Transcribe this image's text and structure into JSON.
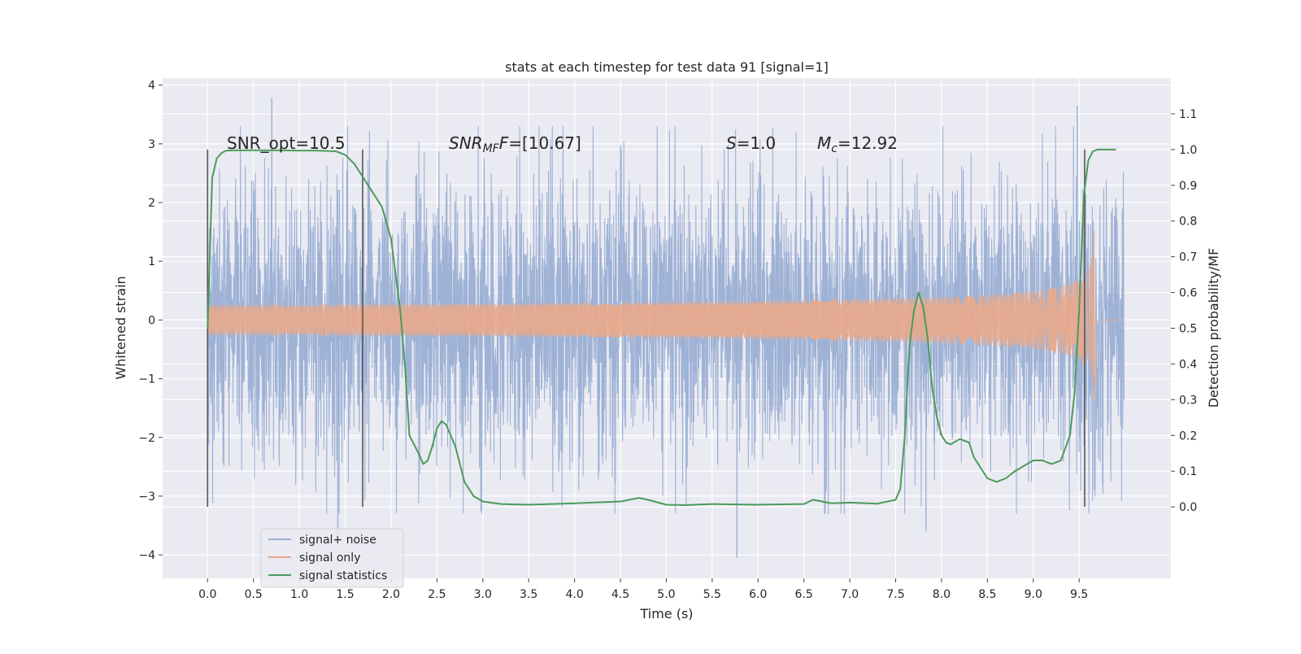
{
  "chart_data": {
    "type": "line",
    "title": "stats at each timestep for test data 91 [signal=1]",
    "xlabel": "Time (s)",
    "ylabel": "Whitened strain",
    "ylabel_right": "Detection probability/MF",
    "xlim": [
      -0.49,
      10.5
    ],
    "ylim": [
      -4.4,
      4.12
    ],
    "ylim_right": [
      -0.2,
      1.2
    ],
    "xticks": [
      0.0,
      0.5,
      1.0,
      1.5,
      2.0,
      2.5,
      3.0,
      3.5,
      4.0,
      4.5,
      5.0,
      5.5,
      6.0,
      6.5,
      7.0,
      7.5,
      8.0,
      8.5,
      9.0,
      9.5
    ],
    "xtick_labels": [
      "0.0",
      "0.5",
      "1.0",
      "1.5",
      "2.0",
      "2.5",
      "3.0",
      "3.5",
      "4.0",
      "4.5",
      "5.0",
      "5.5",
      "6.0",
      "6.5",
      "7.0",
      "7.5",
      "8.0",
      "8.5",
      "9.0",
      "9.5"
    ],
    "yticks": [
      -4,
      -3,
      -2,
      -1,
      0,
      1,
      2,
      3,
      4
    ],
    "ytick_labels": [
      "−4",
      "−3",
      "−2",
      "−1",
      "0",
      "1",
      "2",
      "3",
      "4"
    ],
    "yticks_right": [
      0.0,
      0.1,
      0.2,
      0.3,
      0.4,
      0.5,
      0.6,
      0.7,
      0.8,
      0.9,
      1.0,
      1.1
    ],
    "ytick_labels_right": [
      "0.0",
      "0.1",
      "0.2",
      "0.3",
      "0.4",
      "0.5",
      "0.6",
      "0.7",
      "0.8",
      "0.9",
      "1.0",
      "1.1"
    ],
    "grid": true,
    "legend_position": "lower-left",
    "annotations": {
      "snr_opt": "SNR_opt=10.5",
      "snr_mf_prefix": "SNR",
      "snr_mf_sub": "MF",
      "snr_mf_suffix": "=[10.67]",
      "s_prefix": "S",
      "s_suffix": "=1.0",
      "mc_prefix": "M",
      "mc_sub": "c",
      "mc_suffix": "=12.92"
    },
    "vertical_markers": [
      0.0,
      1.69,
      9.56
    ],
    "series": [
      {
        "name": "signal+ noise",
        "color": "#9aafd4",
        "axis": "left",
        "x_range": [
          0.0,
          9.99
        ],
        "envelope_low": -2.1,
        "envelope_high": 2.1,
        "notable_extremes": [
          {
            "x": 0.7,
            "y": 3.78
          },
          {
            "x": 1.42,
            "y": -3.65
          },
          {
            "x": 5.77,
            "y": -4.05
          },
          {
            "x": 7.83,
            "y": -3.6
          },
          {
            "x": 9.48,
            "y": 3.65
          }
        ]
      },
      {
        "name": "signal only",
        "color": "#e9a88a",
        "axis": "left",
        "description": "chirp growing in amplitude, merger at ~9.67 s",
        "merger_time": 9.67,
        "peak_amplitude": 2.0
      },
      {
        "name": "signal statistics",
        "color": "#4c9a5a",
        "axis": "right",
        "x": [
          0.0,
          0.05,
          0.1,
          0.15,
          0.2,
          0.3,
          0.5,
          0.8,
          1.0,
          1.2,
          1.4,
          1.5,
          1.6,
          1.7,
          1.8,
          1.9,
          2.0,
          2.1,
          2.15,
          2.2,
          2.3,
          2.35,
          2.4,
          2.45,
          2.5,
          2.55,
          2.6,
          2.7,
          2.8,
          2.9,
          3.0,
          3.2,
          3.5,
          4.0,
          4.5,
          4.7,
          4.8,
          5.0,
          5.2,
          5.5,
          6.0,
          6.2,
          6.5,
          6.6,
          6.8,
          7.0,
          7.3,
          7.5,
          7.55,
          7.6,
          7.65,
          7.7,
          7.75,
          7.8,
          7.85,
          7.9,
          7.95,
          8.0,
          8.05,
          8.1,
          8.2,
          8.3,
          8.35,
          8.4,
          8.5,
          8.6,
          8.7,
          8.8,
          9.0,
          9.1,
          9.2,
          9.3,
          9.4,
          9.45,
          9.5,
          9.55,
          9.6,
          9.65,
          9.7,
          9.8,
          9.9
        ],
        "values": [
          0.5,
          0.92,
          0.975,
          0.99,
          0.997,
          0.998,
          0.998,
          0.998,
          0.997,
          0.997,
          0.995,
          0.985,
          0.96,
          0.92,
          0.88,
          0.84,
          0.75,
          0.55,
          0.4,
          0.2,
          0.15,
          0.12,
          0.13,
          0.17,
          0.22,
          0.24,
          0.23,
          0.17,
          0.07,
          0.03,
          0.015,
          0.008,
          0.006,
          0.01,
          0.015,
          0.025,
          0.02,
          0.006,
          0.005,
          0.008,
          0.006,
          0.007,
          0.008,
          0.02,
          0.01,
          0.012,
          0.009,
          0.02,
          0.05,
          0.2,
          0.45,
          0.55,
          0.6,
          0.56,
          0.47,
          0.33,
          0.25,
          0.2,
          0.18,
          0.175,
          0.19,
          0.18,
          0.14,
          0.12,
          0.08,
          0.07,
          0.08,
          0.1,
          0.13,
          0.13,
          0.12,
          0.13,
          0.2,
          0.32,
          0.55,
          0.87,
          0.97,
          0.995,
          1.0,
          1.0,
          1.0
        ]
      }
    ]
  }
}
